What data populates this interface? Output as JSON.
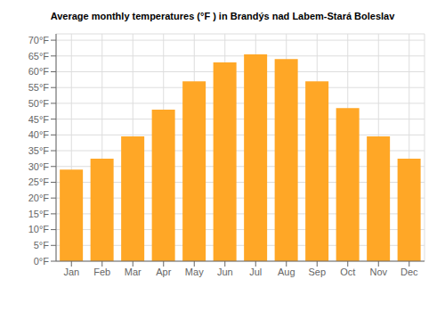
{
  "chart_data": {
    "type": "bar",
    "title": "Average monthly temperatures (°F ) in Brandýs nad Labem-Stará Boleslav",
    "categories": [
      "Jan",
      "Feb",
      "Mar",
      "Apr",
      "May",
      "Jun",
      "Jul",
      "Aug",
      "Sep",
      "Oct",
      "Nov",
      "Dec"
    ],
    "values": [
      29,
      32.5,
      39.5,
      48,
      57,
      63,
      65.5,
      64,
      57,
      48.5,
      39.5,
      32.5
    ],
    "color": "#FFA726",
    "ylim": [
      0,
      72
    ],
    "yticks": [
      {
        "value": 0,
        "label": "0°F"
      },
      {
        "value": 5,
        "label": "5°F"
      },
      {
        "value": 10,
        "label": "10°F"
      },
      {
        "value": 15,
        "label": "15°F"
      },
      {
        "value": 20,
        "label": "20°F"
      },
      {
        "value": 25,
        "label": "25°F"
      },
      {
        "value": 30,
        "label": "30°F"
      },
      {
        "value": 35,
        "label": "35°F"
      },
      {
        "value": 40,
        "label": "40°F"
      },
      {
        "value": 45,
        "label": "45°F"
      },
      {
        "value": 50,
        "label": "50°F"
      },
      {
        "value": 55,
        "label": "55°F"
      },
      {
        "value": 60,
        "label": "60°F"
      },
      {
        "value": 65,
        "label": "65°F"
      },
      {
        "value": 70,
        "label": "70°F"
      }
    ],
    "grid": true
  }
}
